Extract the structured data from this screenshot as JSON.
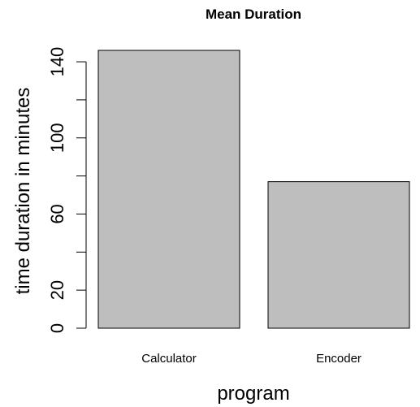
{
  "chart_data": {
    "type": "bar",
    "title": "Mean Duration",
    "xlabel": "program",
    "ylabel": "time duration in minutes",
    "categories": [
      "Calculator",
      "Encoder"
    ],
    "values": [
      146,
      77
    ],
    "ylim": [
      0,
      146
    ],
    "y_major_ticks": [
      0,
      20,
      60,
      100,
      140
    ],
    "y_minor_ticks": [
      40,
      80,
      120
    ],
    "bar_color": "#bebebe",
    "bar_stroke": "#000000",
    "grid": false,
    "legend": "none"
  }
}
